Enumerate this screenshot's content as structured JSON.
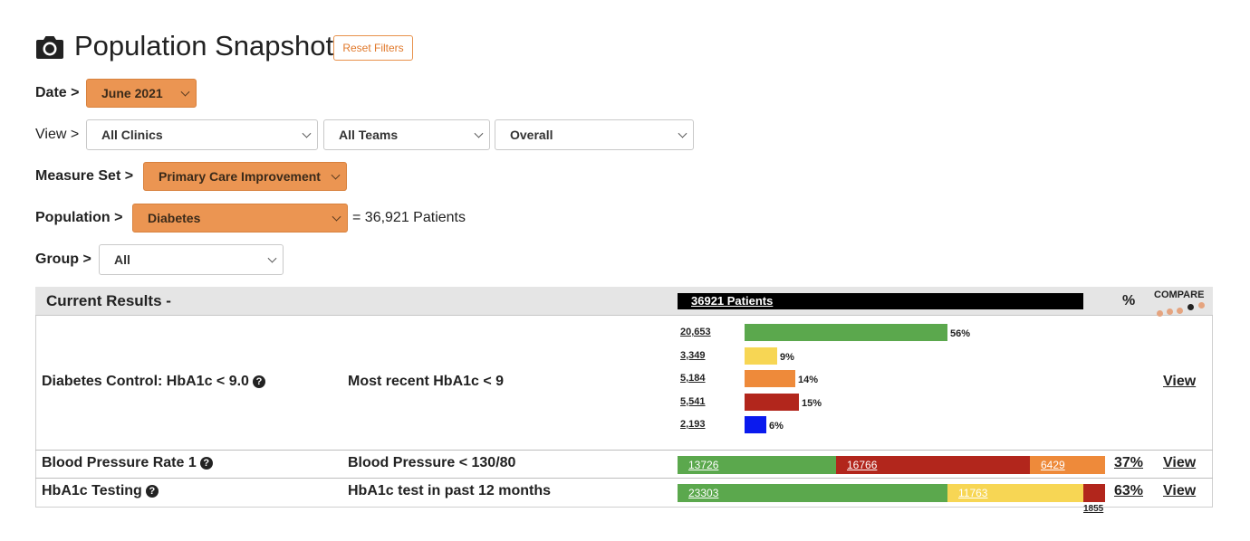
{
  "header": {
    "title": "Population Snapshot",
    "icon": "camera-icon",
    "reset_label": "Reset Filters"
  },
  "filters": {
    "date": {
      "label": "Date >",
      "value": "June 2021"
    },
    "view": {
      "label": "View >",
      "clinic": "All Clinics",
      "team": "All Teams",
      "scope": "Overall"
    },
    "measure_set": {
      "label": "Measure Set >",
      "value": "Primary Care Improvement"
    },
    "population": {
      "label": "Population >",
      "value": "Diabetes",
      "count_text": "= 36,921 Patients"
    },
    "group": {
      "label": "Group >",
      "value": "All"
    }
  },
  "results": {
    "heading": "Current Results -",
    "patients_label": "36921 Patients",
    "pct_header": "%",
    "compare_header": "COMPARE",
    "rows": [
      {
        "name": "Diabetes Control: HbA1c < 9.0",
        "description": "Most recent HbA1c < 9",
        "view_label": "View",
        "breakdown": [
          {
            "count": "20,653",
            "pct": "56%",
            "value": 0.56,
            "color": "#5ba84d"
          },
          {
            "count": "3,349",
            "pct": "9%",
            "value": 0.09,
            "color": "#f7d654"
          },
          {
            "count": "5,184",
            "pct": "14%",
            "value": 0.14,
            "color": "#ee8a3a"
          },
          {
            "count": "5,541",
            "pct": "15%",
            "value": 0.15,
            "color": "#b2261c"
          },
          {
            "count": "2,193",
            "pct": "6%",
            "value": 0.06,
            "color": "#0a1aee"
          }
        ]
      },
      {
        "name": "Blood Pressure Rate 1",
        "description": "Blood Pressure < 130/80",
        "pct": "37%",
        "view_label": "View",
        "segments": [
          {
            "label": "13726",
            "value": 13726,
            "color": "#5ba84d"
          },
          {
            "label": "16766",
            "value": 16766,
            "color": "#b2261c"
          },
          {
            "label": "6429",
            "value": 6429,
            "color": "#ee8a3a"
          }
        ]
      },
      {
        "name": "HbA1c Testing",
        "description": "HbA1c test in past 12 months",
        "pct": "63%",
        "view_label": "View",
        "segments": [
          {
            "label": "23303",
            "value": 23303,
            "color": "#5ba84d"
          },
          {
            "label": "11763",
            "value": 11763,
            "color": "#f7d654"
          },
          {
            "label": "1855",
            "value": 1855,
            "color": "#b2261c"
          }
        ],
        "tail_label": "1855"
      }
    ]
  }
}
